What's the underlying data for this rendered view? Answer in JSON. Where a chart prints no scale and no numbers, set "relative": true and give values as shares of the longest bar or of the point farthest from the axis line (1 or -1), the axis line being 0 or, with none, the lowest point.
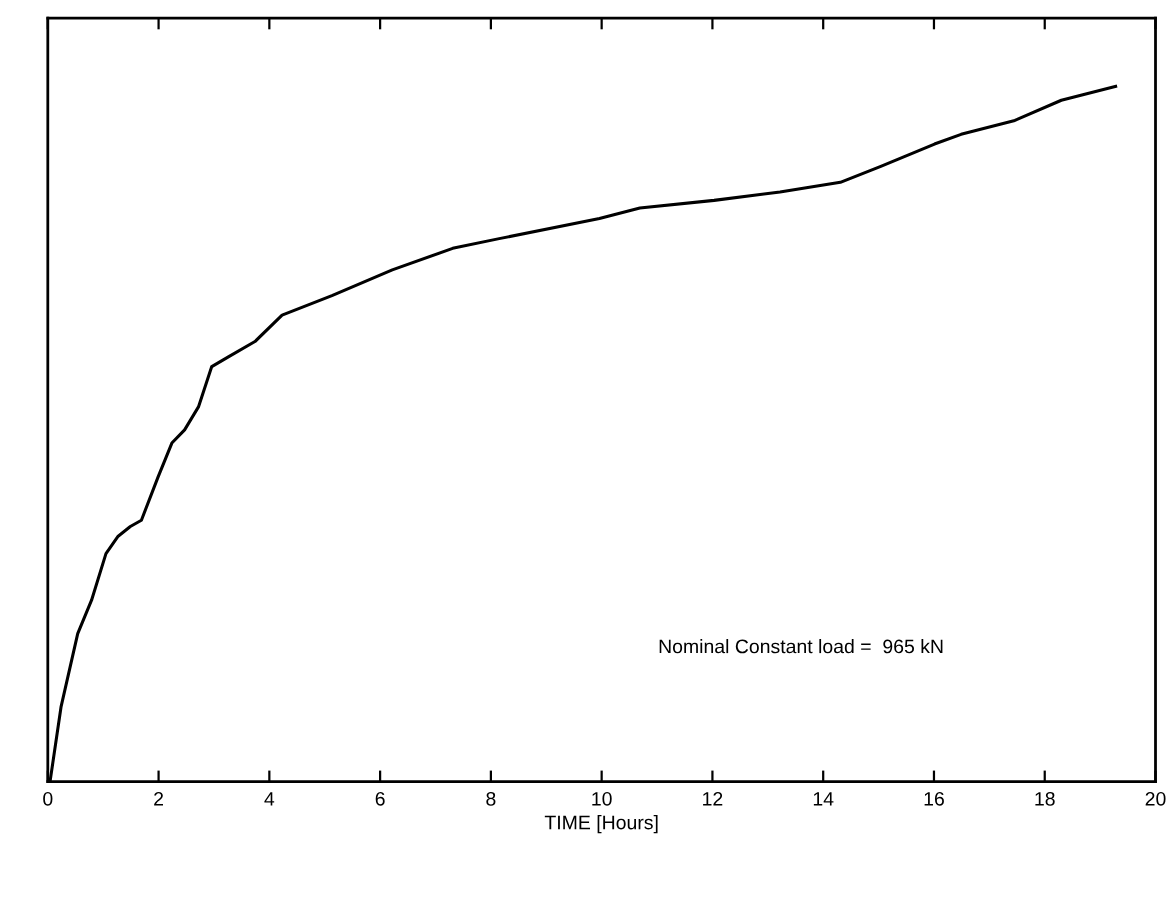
{
  "chart_data": {
    "type": "line",
    "relative": true,
    "xlabel": "TIME [Hours]",
    "xlim": [
      0,
      20
    ],
    "xticks": [
      0,
      2,
      4,
      6,
      8,
      10,
      12,
      14,
      16,
      18,
      20
    ],
    "color": "#000000",
    "grid": false,
    "legend": false,
    "marker": "none",
    "line_style": "solid",
    "tick_labels": "x",
    "annotations": [
      "Nominal Constant load =  965 kN"
    ],
    "x": [
      0.04,
      0.24,
      0.54,
      0.79,
      1.05,
      1.27,
      1.49,
      1.69,
      1.99,
      2.24,
      2.47,
      2.72,
      2.96,
      3.26,
      3.74,
      4.23,
      5.13,
      6.22,
      7.31,
      8.15,
      9.96,
      10.69,
      12.03,
      13.22,
      14.31,
      15.04,
      16.01,
      16.49,
      17.46,
      18.3,
      19.28
    ],
    "values": [
      0,
      0.108,
      0.213,
      0.261,
      0.328,
      0.353,
      0.367,
      0.376,
      0.438,
      0.487,
      0.506,
      0.539,
      0.597,
      0.611,
      0.633,
      0.671,
      0.699,
      0.736,
      0.767,
      0.781,
      0.81,
      0.825,
      0.836,
      0.848,
      0.862,
      0.885,
      0.917,
      0.931,
      0.951,
      0.98,
      1.0
    ]
  }
}
